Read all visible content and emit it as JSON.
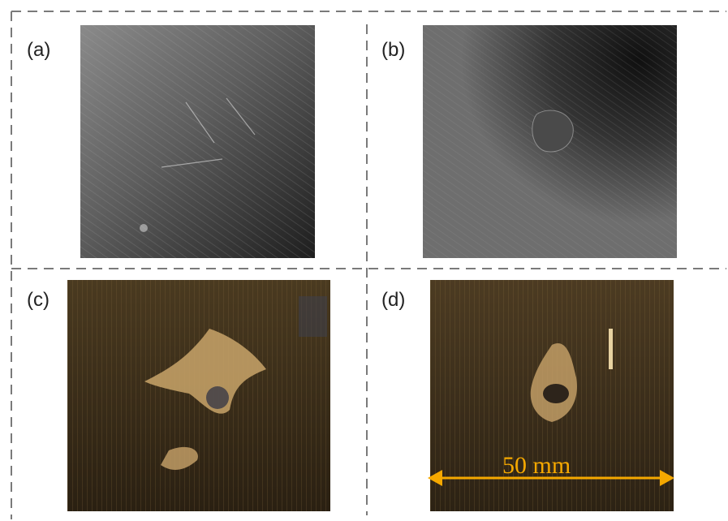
{
  "panels": [
    {
      "id": "a",
      "label": "(a)"
    },
    {
      "id": "b",
      "label": "(b)"
    },
    {
      "id": "c",
      "label": "(c)"
    },
    {
      "id": "d",
      "label": "(d)"
    }
  ],
  "scale_bar": {
    "label": "50 mm",
    "color": "#f5a800"
  },
  "colors": {
    "divider": "#7a7a7a"
  }
}
